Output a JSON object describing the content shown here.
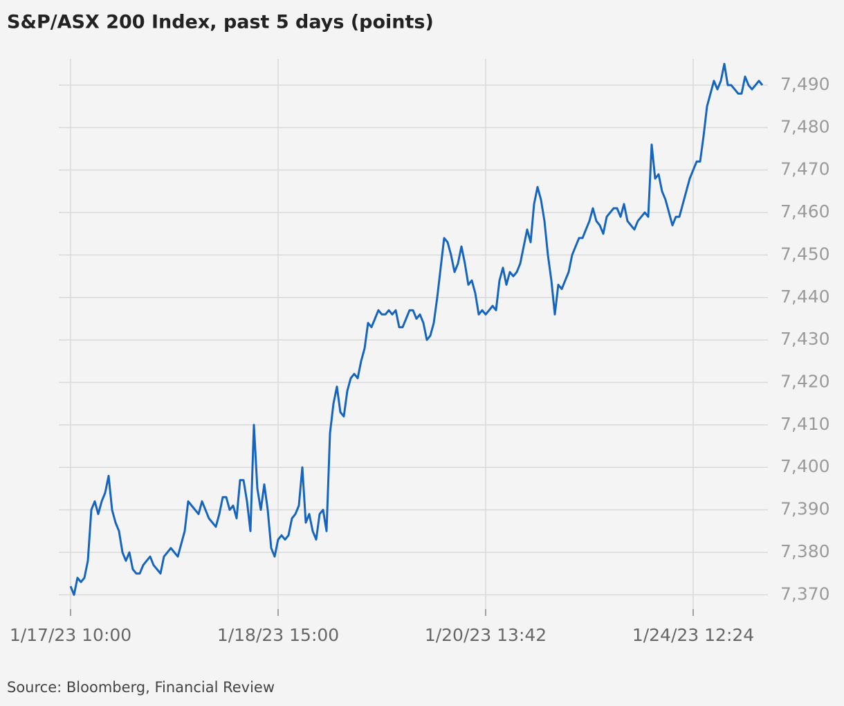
{
  "chart_data": {
    "type": "line",
    "title": "S&P/ASX 200 Index, past 5 days (points)",
    "source": "Source: Bloomberg, Financial Review",
    "color": "#1565c0",
    "grid": true,
    "categories": [
      "1/17/23 10:00",
      null,
      null,
      null,
      null,
      null,
      null,
      null,
      null,
      null,
      null,
      null,
      null,
      null,
      null,
      null,
      null,
      null,
      null,
      null,
      null,
      null,
      null,
      null,
      null,
      null,
      null,
      null,
      null,
      null,
      null,
      null,
      null,
      null,
      null,
      null,
      null,
      null,
      null,
      null,
      null,
      null,
      null,
      null,
      null,
      null,
      null,
      null,
      null,
      null,
      null,
      null,
      null,
      null,
      null,
      null,
      null,
      null,
      null,
      null,
      "1/18/23 15:00",
      null,
      null,
      null,
      null,
      null,
      null,
      null,
      null,
      null,
      null,
      null,
      null,
      null,
      null,
      null,
      null,
      null,
      null,
      null,
      null,
      null,
      null,
      null,
      null,
      null,
      null,
      null,
      null,
      null,
      null,
      null,
      null,
      null,
      null,
      null,
      null,
      null,
      null,
      null,
      null,
      null,
      null,
      null,
      null,
      null,
      null,
      null,
      null,
      null,
      null,
      null,
      null,
      null,
      null,
      null,
      null,
      null,
      null,
      null,
      "1/20/23 13:42",
      null,
      null,
      null,
      null,
      null,
      null,
      null,
      null,
      null,
      null,
      null,
      null,
      null,
      null,
      null,
      null,
      null,
      null,
      null,
      null,
      null,
      null,
      null,
      null,
      null,
      null,
      null,
      null,
      null,
      null,
      null,
      null,
      null,
      null,
      null,
      null,
      null,
      null,
      null,
      null,
      null,
      null,
      null,
      null,
      null,
      null,
      null,
      null,
      null,
      null,
      null,
      null,
      null,
      null,
      null,
      null,
      null,
      null,
      null,
      "1/24/23 12:24",
      null,
      null,
      null,
      null,
      null,
      null,
      null,
      null,
      null,
      null,
      null,
      null,
      null,
      null,
      null,
      null,
      null,
      null,
      null,
      null
    ],
    "values": [
      7372,
      7370,
      7374,
      7373,
      7374,
      7378,
      7390,
      7392,
      7389,
      7392,
      7394,
      7398,
      7390,
      7387,
      7385,
      7380,
      7378,
      7380,
      7376,
      7375,
      7375,
      7377,
      7378,
      7379,
      7377,
      7376,
      7375,
      7379,
      7380,
      7381,
      7380,
      7379,
      7382,
      7385,
      7392,
      7391,
      7390,
      7389,
      7392,
      7390,
      7388,
      7387,
      7386,
      7389,
      7393,
      7393,
      7390,
      7391,
      7388,
      7397,
      7397,
      7392,
      7385,
      7410,
      7395,
      7390,
      7396,
      7390,
      7381,
      7379,
      7383,
      7384,
      7383,
      7384,
      7388,
      7389,
      7391,
      7400,
      7387,
      7389,
      7385,
      7383,
      7389,
      7390,
      7385,
      7408,
      7415,
      7419,
      7413,
      7412,
      7418,
      7421,
      7422,
      7421,
      7425,
      7428,
      7434,
      7433,
      7435,
      7437,
      7436,
      7436,
      7437,
      7436,
      7437,
      7433,
      7433,
      7435,
      7437,
      7437,
      7435,
      7436,
      7434,
      7430,
      7431,
      7434,
      7440,
      7447,
      7454,
      7453,
      7450,
      7446,
      7448,
      7452,
      7448,
      7443,
      7444,
      7441,
      7436,
      7437,
      7436,
      7437,
      7438,
      7437,
      7444,
      7447,
      7443,
      7446,
      7445,
      7446,
      7448,
      7452,
      7456,
      7453,
      7462,
      7466,
      7463,
      7458,
      7450,
      7444,
      7436,
      7443,
      7442,
      7444,
      7446,
      7450,
      7452,
      7454,
      7454,
      7456,
      7458,
      7461,
      7458,
      7457,
      7455,
      7459,
      7460,
      7461,
      7461,
      7459,
      7462,
      7458,
      7457,
      7456,
      7458,
      7459,
      7460,
      7459,
      7476,
      7468,
      7469,
      7465,
      7463,
      7460,
      7457,
      7459,
      7459,
      7462,
      7465,
      7468,
      7470,
      7472,
      7472,
      7478,
      7485,
      7488,
      7491,
      7489,
      7491,
      7495,
      7490,
      7490,
      7489,
      7488,
      7488,
      7492,
      7490,
      7489,
      7490,
      7491,
      7490
    ],
    "ylim": [
      7365,
      7497
    ],
    "yticks": [
      {
        "value": 7370,
        "label": "7,370"
      },
      {
        "value": 7380,
        "label": "7,380"
      },
      {
        "value": 7390,
        "label": "7,390"
      },
      {
        "value": 7400,
        "label": "7,400"
      },
      {
        "value": 7410,
        "label": "7,410"
      },
      {
        "value": 7420,
        "label": "7,420"
      },
      {
        "value": 7430,
        "label": "7,430"
      },
      {
        "value": 7440,
        "label": "7,440"
      },
      {
        "value": 7450,
        "label": "7,450"
      },
      {
        "value": 7460,
        "label": "7,460"
      },
      {
        "value": 7470,
        "label": "7,470"
      },
      {
        "value": 7480,
        "label": "7,480"
      },
      {
        "value": 7490,
        "label": "7,490"
      }
    ]
  }
}
